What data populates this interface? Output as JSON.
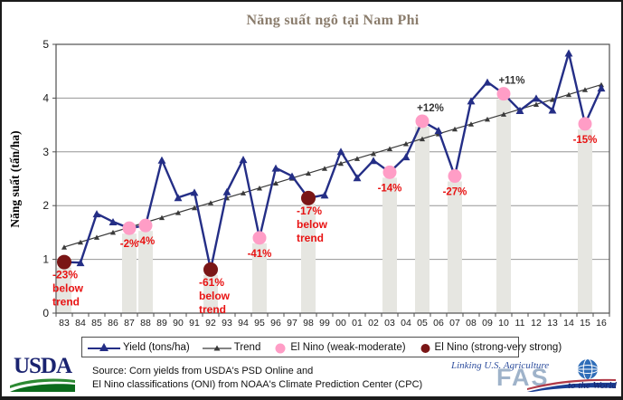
{
  "title": "Năng suất ngô tại Nam Phi",
  "colors": {
    "yield_line": "#242e86",
    "trend_line": "#3a3a3a",
    "el_nino_weak": "#ff9dc6",
    "el_nino_strong": "#7a1616",
    "annotation_red": "#e81212",
    "annotation_dark": "#333333",
    "shading_bar": "#e6e6e1",
    "gridline": "#969696",
    "frame": "#4f4f4f",
    "title_text": "#8b7d6d",
    "usda_navy": "#1a2370",
    "usda_green_light": "#2d8a33",
    "usda_green_dark": "#0b6b1c",
    "fas_light_blue": "#9fb3ca",
    "fas_navy": "#1b3f94",
    "fas_red": "#b03a48",
    "fas_globe_blue": "#2f6db8"
  },
  "chart_data": {
    "type": "line",
    "title": "Năng suất ngô tại Nam Phi",
    "xlabel": "",
    "ylabel": "Năng suất (tấn/ha)",
    "ylim": [
      0,
      5
    ],
    "yticks": [
      0,
      1,
      2,
      3,
      4,
      5
    ],
    "grid": "horizontal",
    "legend_position": "bottom",
    "categories": [
      "83",
      "84",
      "85",
      "86",
      "87",
      "88",
      "89",
      "90",
      "91",
      "92",
      "93",
      "94",
      "95",
      "96",
      "97",
      "98",
      "99",
      "00",
      "01",
      "02",
      "03",
      "04",
      "05",
      "06",
      "07",
      "08",
      "09",
      "10",
      "11",
      "12",
      "13",
      "14",
      "15",
      "16"
    ],
    "series": [
      {
        "name": "Yield (tons/ha)",
        "values": [
          0.95,
          0.94,
          1.85,
          1.7,
          1.58,
          1.63,
          2.85,
          2.15,
          2.25,
          0.81,
          2.26,
          2.86,
          1.4,
          2.7,
          2.55,
          2.14,
          2.2,
          3.01,
          2.52,
          2.84,
          2.62,
          2.91,
          3.57,
          3.4,
          2.55,
          3.95,
          4.3,
          4.08,
          3.77,
          4.0,
          3.78,
          4.84,
          3.52,
          4.19
        ]
      },
      {
        "name": "Trend",
        "type": "linear_trend",
        "start_value": 1.23,
        "end_value": 4.25
      }
    ],
    "el_nino_events": [
      {
        "year": "83",
        "type": "strong-very strong",
        "label": "-23% below trend",
        "placement": "below"
      },
      {
        "year": "87",
        "type": "weak-moderate",
        "label": "-2%",
        "placement": "below"
      },
      {
        "year": "88",
        "type": "weak-moderate",
        "label": "-4%",
        "placement": "below"
      },
      {
        "year": "92",
        "type": "strong-very strong",
        "label": "-61% below trend",
        "placement": "below"
      },
      {
        "year": "95",
        "type": "weak-moderate",
        "label": "-41%",
        "placement": "below"
      },
      {
        "year": "98",
        "type": "strong-very strong",
        "label": "-17% below trend",
        "placement": "below"
      },
      {
        "year": "03",
        "type": "weak-moderate",
        "label": "-14%",
        "placement": "below"
      },
      {
        "year": "05",
        "type": "weak-moderate",
        "label": "+12%",
        "placement": "above"
      },
      {
        "year": "07",
        "type": "weak-moderate",
        "label": "-27%",
        "placement": "below"
      },
      {
        "year": "10",
        "type": "weak-moderate",
        "label": "+11%",
        "placement": "above"
      },
      {
        "year": "15",
        "type": "weak-moderate",
        "label": "-15%",
        "placement": "below"
      }
    ]
  },
  "legend": {
    "items": [
      {
        "label": "Yield (tons/ha)"
      },
      {
        "label": "Trend"
      },
      {
        "label": "El Nino (weak-moderate)"
      },
      {
        "label": "El Nino (strong-very strong)"
      }
    ]
  },
  "footer": {
    "usda_logo_text": "USDA",
    "source_line1": "Source: Corn yields from USDA's PSD Online and",
    "source_line2": "El Nino classifications (ONI) from NOAA's Climate Prediction Center (CPC)",
    "fas": {
      "tagline": "Linking U.S. Agriculture",
      "acronym": "FAS",
      "sub": "to the World"
    }
  }
}
